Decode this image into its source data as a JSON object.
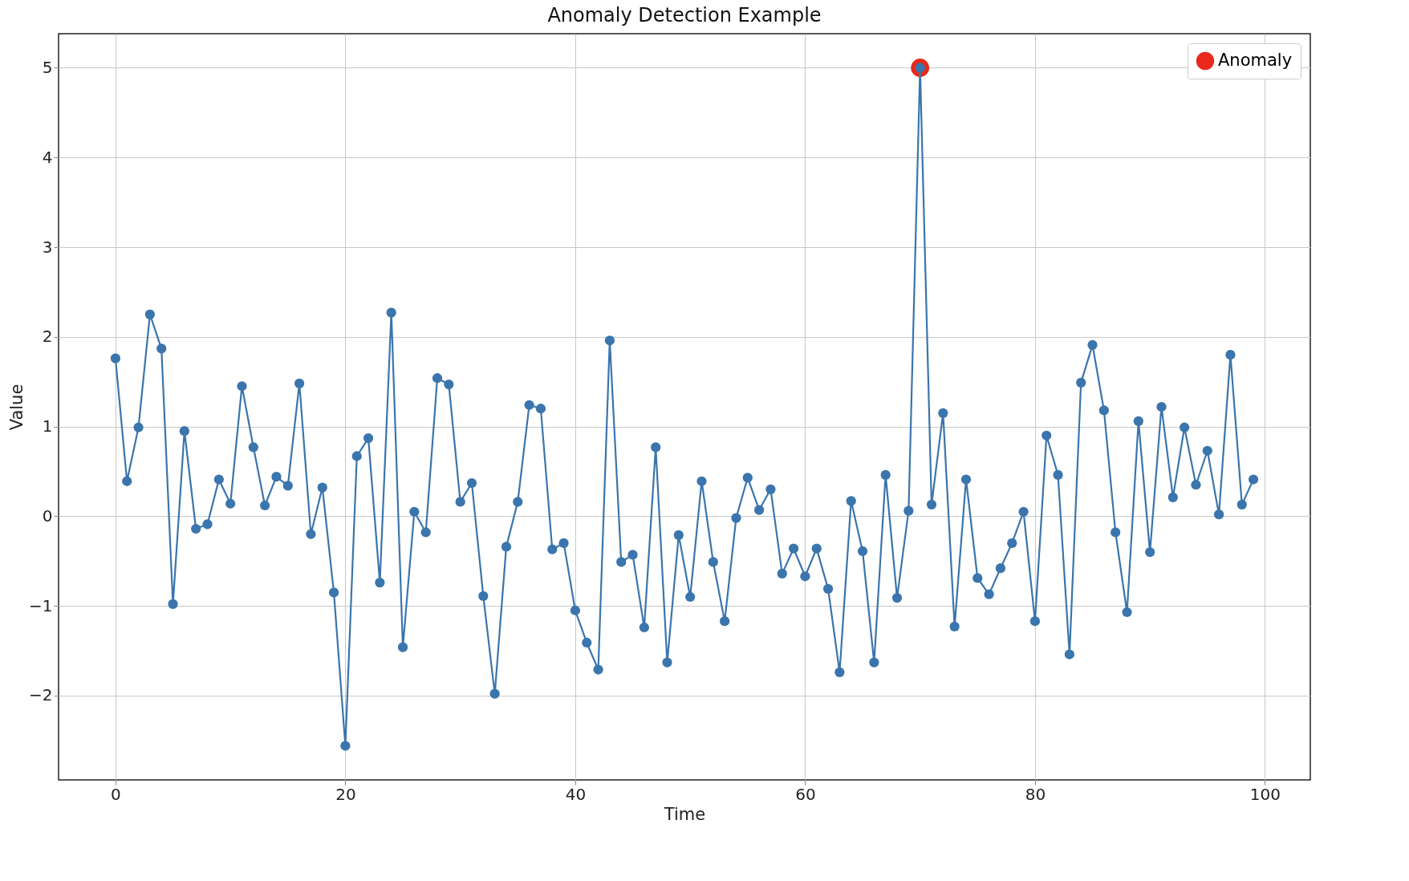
{
  "chart_data": {
    "type": "line",
    "title": "Anomaly Detection Example",
    "xlabel": "Time",
    "ylabel": "Value",
    "x": [
      0,
      1,
      2,
      3,
      4,
      5,
      6,
      7,
      8,
      9,
      10,
      11,
      12,
      13,
      14,
      15,
      16,
      17,
      18,
      19,
      20,
      21,
      22,
      23,
      24,
      25,
      26,
      27,
      28,
      29,
      30,
      31,
      32,
      33,
      34,
      35,
      36,
      37,
      38,
      39,
      40,
      41,
      42,
      43,
      44,
      45,
      46,
      47,
      48,
      49,
      50,
      51,
      52,
      53,
      54,
      55,
      56,
      57,
      58,
      59,
      60,
      61,
      62,
      63,
      64,
      65,
      66,
      67,
      68,
      69,
      70,
      71,
      72,
      73,
      74,
      75,
      76,
      77,
      78,
      79,
      80,
      81,
      82,
      83,
      84,
      85,
      86,
      87,
      88,
      89,
      90,
      91,
      92,
      93,
      94,
      95,
      96,
      97,
      98,
      99
    ],
    "series": [
      {
        "color": "#3a75ad",
        "marker": "circle",
        "values": [
          1.76,
          0.39,
          0.99,
          2.25,
          1.87,
          -0.98,
          0.95,
          -0.14,
          -0.09,
          0.41,
          0.14,
          1.45,
          0.77,
          0.12,
          0.44,
          0.34,
          1.48,
          -0.2,
          0.32,
          -0.85,
          -2.56,
          0.67,
          0.87,
          -0.74,
          2.27,
          -1.46,
          0.05,
          -0.18,
          1.54,
          1.47,
          0.16,
          0.37,
          -0.89,
          -1.98,
          -0.34,
          0.16,
          1.24,
          1.2,
          -0.37,
          -0.3,
          -1.05,
          -1.41,
          -1.71,
          1.96,
          -0.51,
          -0.43,
          -1.24,
          0.77,
          -1.63,
          -0.21,
          -0.9,
          0.39,
          -0.51,
          -1.17,
          -0.02,
          0.43,
          0.07,
          0.3,
          -0.64,
          -0.36,
          -0.67,
          -0.36,
          -0.81,
          -1.74,
          0.17,
          -0.39,
          -1.63,
          0.46,
          -0.91,
          0.06,
          5.0,
          0.13,
          1.15,
          -1.23,
          0.41,
          -0.69,
          -0.87,
          -0.58,
          -0.3,
          0.05,
          -1.17,
          0.9,
          0.46,
          -1.54,
          1.49,
          1.91,
          1.18,
          -0.18,
          -1.07,
          1.06,
          -0.4,
          1.22,
          0.21,
          0.99,
          0.35,
          0.73,
          0.02,
          1.8,
          0.13,
          0.41
        ]
      },
      {
        "type": "scatter",
        "name": "Anomaly",
        "color": "#e8291c",
        "marker": "circle",
        "x": [
          70
        ],
        "values": [
          5.0
        ]
      }
    ],
    "xlim": [
      -4.95,
      103.95
    ],
    "xticks": [
      0,
      20,
      40,
      60,
      80,
      100
    ],
    "ylim": [
      -2.94,
      5.38
    ],
    "yticks": [
      -2,
      -1,
      0,
      1,
      2,
      3,
      4,
      5
    ],
    "grid": true,
    "legend": "top right",
    "line_style": "solid"
  }
}
